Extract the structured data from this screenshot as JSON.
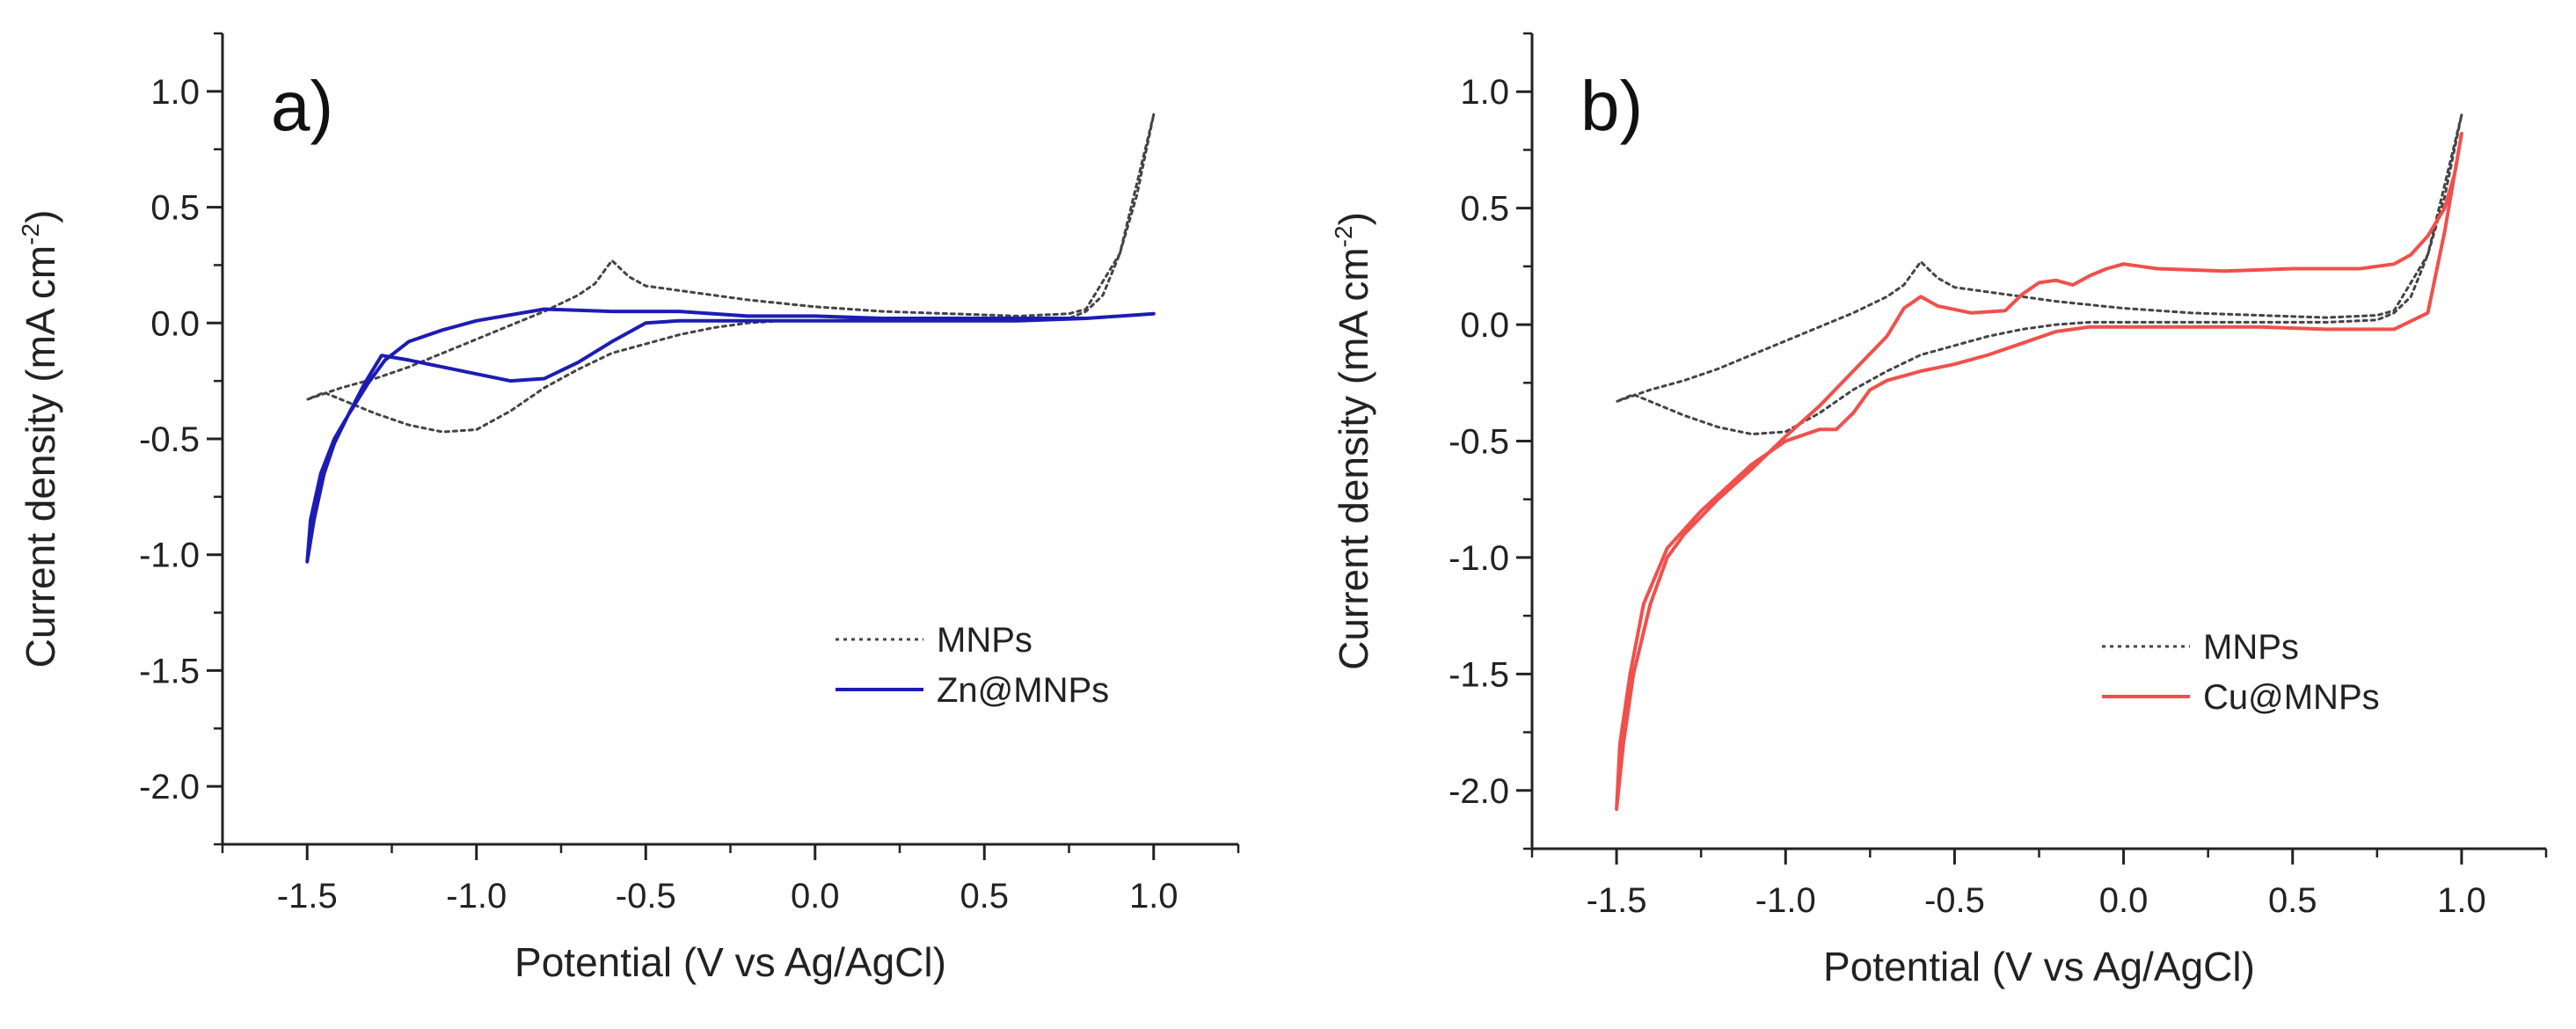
{
  "chart_data": [
    {
      "type": "line",
      "panel_label": "a)",
      "xlabel": "Potential (V vs Ag/AgCl)",
      "ylabel_text": "Current density (mA cm",
      "ylabel_superscript": "-2",
      "ylabel_close": ")",
      "xlim": [
        -1.75,
        1.25
      ],
      "ylim": [
        -2.25,
        1.25
      ],
      "xticks": [
        -1.5,
        -1.0,
        -0.5,
        0.0,
        0.5,
        1.0
      ],
      "xtick_labels": [
        "-1.5",
        "-1.0",
        "-0.5",
        "0.0",
        "0.5",
        "1.0"
      ],
      "yticks": [
        1.0,
        0.5,
        0.0,
        -0.5,
        -1.0,
        -1.5,
        -2.0
      ],
      "ytick_labels": [
        "1.0",
        "0.5",
        "0.0",
        "-0.5",
        "-1.0",
        "-1.5",
        "-2.0"
      ],
      "legend_position": "lower-right",
      "series": [
        {
          "name": "MNPs",
          "color": "#444444",
          "style": "dotted",
          "x": [
            1.0,
            0.9,
            0.8,
            0.75,
            0.6,
            0.4,
            0.2,
            0.0,
            -0.2,
            -0.4,
            -0.5,
            -0.55,
            -0.6,
            -0.65,
            -0.7,
            -0.8,
            -0.9,
            -1.0,
            -1.1,
            -1.2,
            -1.3,
            -1.4,
            -1.5,
            -1.45,
            -1.4,
            -1.3,
            -1.2,
            -1.1,
            -1.0,
            -0.9,
            -0.8,
            -0.7,
            -0.6,
            -0.5,
            -0.4,
            -0.3,
            -0.2,
            -0.1,
            0.0,
            0.2,
            0.4,
            0.6,
            0.75,
            0.8,
            0.85,
            0.9,
            0.95,
            1.0
          ],
          "y": [
            0.9,
            0.3,
            0.06,
            0.04,
            0.03,
            0.04,
            0.05,
            0.07,
            0.1,
            0.14,
            0.16,
            0.2,
            0.27,
            0.17,
            0.12,
            0.05,
            -0.01,
            -0.07,
            -0.13,
            -0.19,
            -0.24,
            -0.28,
            -0.33,
            -0.3,
            -0.33,
            -0.39,
            -0.44,
            -0.47,
            -0.46,
            -0.38,
            -0.28,
            -0.2,
            -0.13,
            -0.09,
            -0.05,
            -0.02,
            0.0,
            0.01,
            0.01,
            0.01,
            0.01,
            0.01,
            0.02,
            0.05,
            0.12,
            0.3,
            0.55,
            0.9
          ]
        },
        {
          "name": "Zn@MNPs",
          "color": "#1c1cb4",
          "style": "solid",
          "x": [
            1.0,
            0.8,
            0.6,
            0.4,
            0.2,
            0.0,
            -0.2,
            -0.4,
            -0.6,
            -0.8,
            -1.0,
            -1.1,
            -1.2,
            -1.27,
            -1.32,
            -1.38,
            -1.42,
            -1.46,
            -1.49,
            -1.5,
            -1.48,
            -1.45,
            -1.42,
            -1.38,
            -1.33,
            -1.28,
            -1.2,
            -1.1,
            -1.0,
            -0.9,
            -0.8,
            -0.7,
            -0.6,
            -0.5,
            -0.4,
            -0.3,
            -0.2,
            -0.1,
            0.0,
            0.2,
            0.4,
            0.6,
            0.8,
            1.0
          ],
          "y": [
            0.04,
            0.02,
            0.02,
            0.02,
            0.02,
            0.03,
            0.03,
            0.05,
            0.05,
            0.06,
            0.01,
            -0.03,
            -0.08,
            -0.16,
            -0.26,
            -0.4,
            -0.5,
            -0.65,
            -0.85,
            -1.03,
            -0.85,
            -0.65,
            -0.52,
            -0.4,
            -0.26,
            -0.14,
            -0.16,
            -0.19,
            -0.22,
            -0.25,
            -0.24,
            -0.17,
            -0.08,
            0.0,
            0.01,
            0.01,
            0.01,
            0.01,
            0.01,
            0.01,
            0.01,
            0.01,
            0.02,
            0.04
          ]
        }
      ]
    },
    {
      "type": "line",
      "panel_label": "b)",
      "xlabel": "Potential (V vs Ag/AgCl)",
      "ylabel_text": "Current density (mA cm",
      "ylabel_superscript": "-2",
      "ylabel_close": ")",
      "xlim": [
        -1.75,
        1.25
      ],
      "ylim": [
        -2.25,
        1.25
      ],
      "xticks": [
        -1.5,
        -1.0,
        -0.5,
        0.0,
        0.5,
        1.0
      ],
      "xtick_labels": [
        "-1.5",
        "-1.0",
        "-0.5",
        "0.0",
        "0.5",
        "1.0"
      ],
      "yticks": [
        1.0,
        0.5,
        0.0,
        -0.5,
        -1.0,
        -1.5,
        -2.0
      ],
      "ytick_labels": [
        "1.0",
        "0.5",
        "0.0",
        "-0.5",
        "-1.0",
        "-1.5",
        "-2.0"
      ],
      "legend_position": "lower-right",
      "series": [
        {
          "name": "MNPs",
          "color": "#444444",
          "style": "dotted",
          "x": [
            1.0,
            0.9,
            0.8,
            0.75,
            0.6,
            0.4,
            0.2,
            0.0,
            -0.2,
            -0.4,
            -0.5,
            -0.55,
            -0.6,
            -0.65,
            -0.7,
            -0.8,
            -0.9,
            -1.0,
            -1.1,
            -1.2,
            -1.3,
            -1.4,
            -1.5,
            -1.45,
            -1.4,
            -1.3,
            -1.2,
            -1.1,
            -1.0,
            -0.9,
            -0.8,
            -0.7,
            -0.6,
            -0.5,
            -0.4,
            -0.3,
            -0.2,
            -0.1,
            0.0,
            0.2,
            0.4,
            0.6,
            0.75,
            0.8,
            0.85,
            0.9,
            0.95,
            1.0
          ],
          "y": [
            0.9,
            0.3,
            0.06,
            0.04,
            0.03,
            0.04,
            0.05,
            0.07,
            0.1,
            0.14,
            0.16,
            0.2,
            0.27,
            0.17,
            0.12,
            0.05,
            -0.01,
            -0.07,
            -0.13,
            -0.19,
            -0.24,
            -0.28,
            -0.33,
            -0.3,
            -0.33,
            -0.39,
            -0.44,
            -0.47,
            -0.46,
            -0.38,
            -0.28,
            -0.2,
            -0.13,
            -0.09,
            -0.05,
            -0.02,
            0.0,
            0.01,
            0.01,
            0.01,
            0.01,
            0.01,
            0.02,
            0.05,
            0.12,
            0.3,
            0.55,
            0.9
          ]
        },
        {
          "name": "Cu@MNPs",
          "color": "#f0504c",
          "style": "solid",
          "x": [
            1.0,
            0.98,
            0.95,
            0.9,
            0.85,
            0.8,
            0.7,
            0.5,
            0.3,
            0.1,
            0.0,
            -0.05,
            -0.1,
            -0.15,
            -0.2,
            -0.25,
            -0.3,
            -0.35,
            -0.45,
            -0.55,
            -0.6,
            -0.65,
            -0.7,
            -0.8,
            -0.9,
            -1.0,
            -1.1,
            -1.2,
            -1.3,
            -1.35,
            -1.4,
            -1.45,
            -1.48,
            -1.5,
            -1.49,
            -1.46,
            -1.42,
            -1.35,
            -1.25,
            -1.1,
            -1.0,
            -0.9,
            -0.85,
            -0.8,
            -0.75,
            -0.7,
            -0.6,
            -0.5,
            -0.4,
            -0.3,
            -0.2,
            -0.1,
            0.0,
            0.2,
            0.4,
            0.6,
            0.8,
            0.9,
            0.95,
            1.0
          ],
          "y": [
            0.82,
            0.65,
            0.5,
            0.38,
            0.3,
            0.26,
            0.24,
            0.24,
            0.23,
            0.24,
            0.26,
            0.24,
            0.21,
            0.17,
            0.19,
            0.18,
            0.13,
            0.06,
            0.05,
            0.08,
            0.12,
            0.07,
            -0.05,
            -0.2,
            -0.35,
            -0.48,
            -0.62,
            -0.75,
            -0.9,
            -1.0,
            -1.2,
            -1.5,
            -1.8,
            -2.08,
            -1.8,
            -1.5,
            -1.2,
            -0.96,
            -0.8,
            -0.6,
            -0.5,
            -0.45,
            -0.45,
            -0.38,
            -0.28,
            -0.24,
            -0.2,
            -0.17,
            -0.13,
            -0.08,
            -0.03,
            -0.01,
            -0.01,
            -0.01,
            -0.01,
            -0.02,
            -0.02,
            0.05,
            0.4,
            0.82
          ]
        }
      ]
    }
  ]
}
